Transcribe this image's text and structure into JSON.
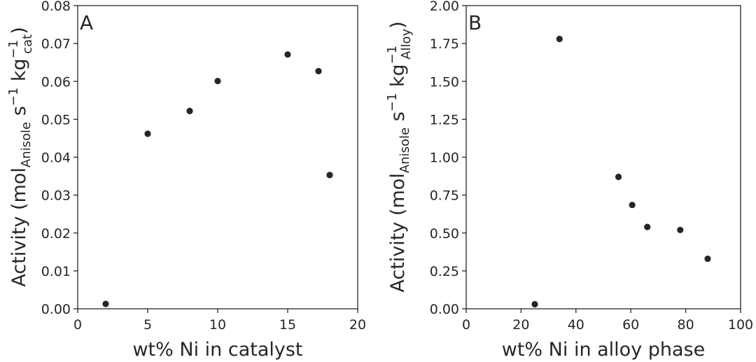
{
  "chart_data": [
    {
      "type": "scatter",
      "panel_label": "A",
      "x": [
        2,
        5,
        8,
        10,
        15,
        17.2,
        18
      ],
      "y": [
        0.0013,
        0.0462,
        0.0522,
        0.0601,
        0.0671,
        0.0627,
        0.0353
      ],
      "xlim": [
        0,
        20
      ],
      "ylim": [
        0,
        0.08
      ],
      "xticks": [
        "0",
        "5",
        "10",
        "15",
        "20"
      ],
      "yticks": [
        "0.00",
        "0.01",
        "0.02",
        "0.03",
        "0.04",
        "0.05",
        "0.06",
        "0.07",
        "0.08"
      ],
      "xlabel": "wt% Ni in catalyst",
      "ylabel": {
        "prefix": "Activity (mol",
        "sub1": "Anisole",
        "mid": " s",
        "sup1": "−1",
        "mid2": " kg",
        "sup2": "−1",
        "sub2": "cat",
        "suffix": ")"
      },
      "marker_color": "#262626"
    },
    {
      "type": "scatter",
      "panel_label": "B",
      "x": [
        25,
        34,
        55.5,
        60.5,
        66,
        78,
        88
      ],
      "y": [
        0.03,
        1.78,
        0.87,
        0.685,
        0.54,
        0.52,
        0.33
      ],
      "xlim": [
        0,
        100
      ],
      "ylim": [
        0,
        2.0
      ],
      "xticks": [
        "0",
        "20",
        "40",
        "60",
        "80",
        "100"
      ],
      "yticks": [
        "0.00",
        "0.25",
        "0.50",
        "0.75",
        "1.00",
        "1.25",
        "1.50",
        "1.75",
        "2.00"
      ],
      "xlabel": "wt% Ni in alloy phase",
      "ylabel": {
        "prefix": "Activity (mol",
        "sub1": "Anisole",
        "mid": " s",
        "sup1": "−1",
        "mid2": " kg",
        "sup2": "−1",
        "sub2": "Alloy",
        "suffix": ")"
      },
      "marker_color": "#262626"
    }
  ]
}
